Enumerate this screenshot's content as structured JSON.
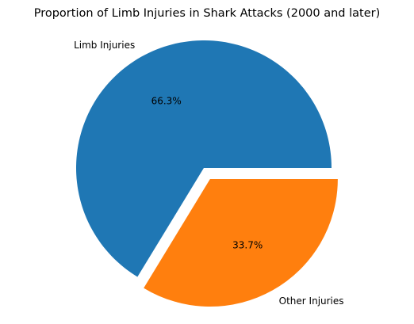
{
  "chart_data": {
    "type": "pie",
    "title": "Proportion of Limb Injuries in Shark Attacks (2000 and later)",
    "slices": [
      {
        "label": "Limb Injuries",
        "value": 66.3,
        "pct_label": "66.3%",
        "color": "#1f77b4",
        "exploded": false
      },
      {
        "label": "Other Injuries",
        "value": 33.7,
        "pct_label": "33.7%",
        "color": "#ff7f0e",
        "exploded": true
      }
    ],
    "start_angle_deg": 0,
    "direction": "counterclockwise",
    "legend": "none"
  }
}
